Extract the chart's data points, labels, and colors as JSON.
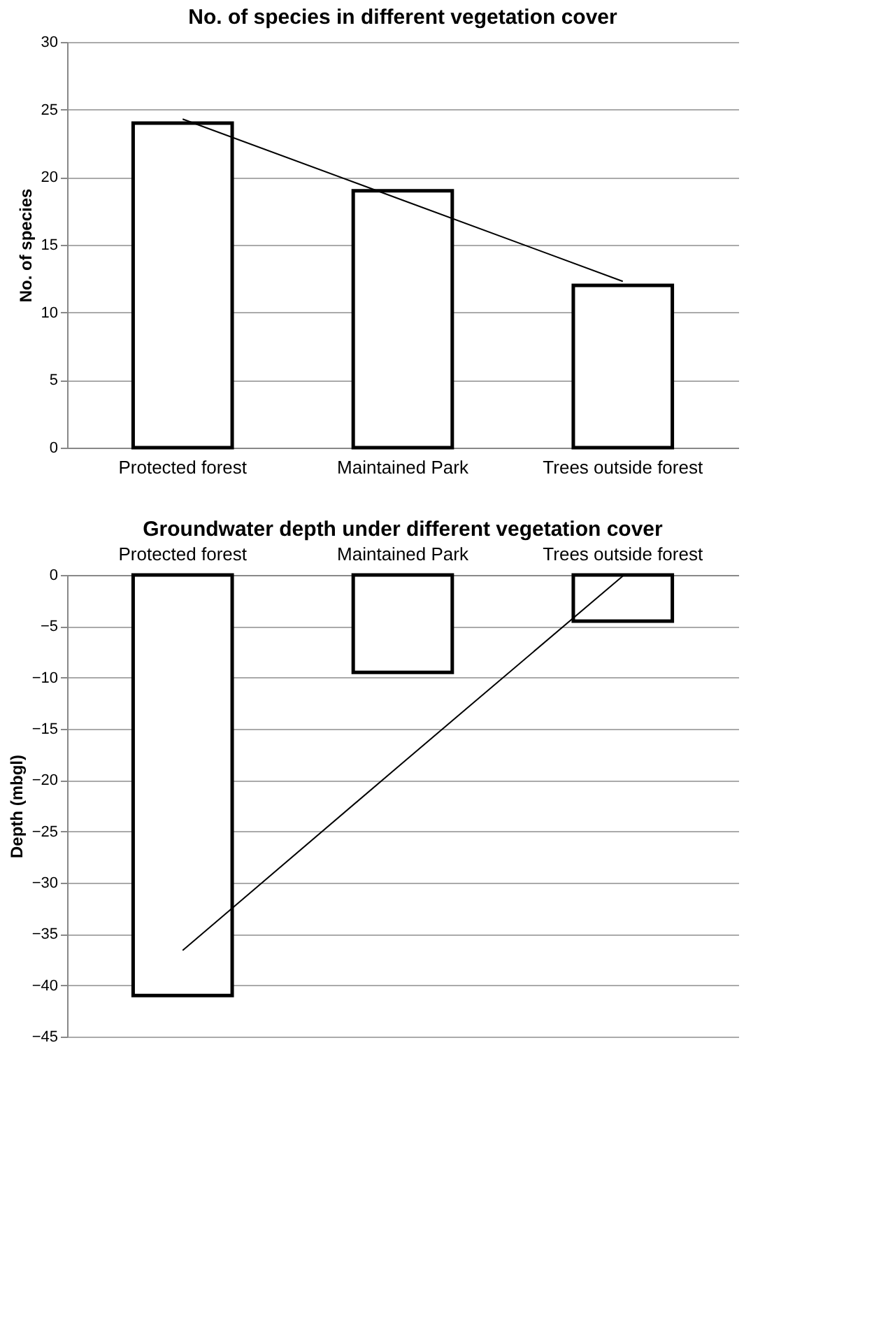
{
  "chart_data": [
    {
      "type": "bar",
      "title": "No. of species in different vegetation cover",
      "ylabel": "No. of species",
      "categories": [
        "Protected forest",
        "Maintained Park",
        "Trees outside forest"
      ],
      "series": [
        {
          "color": "#ffffff",
          "values": [
            24,
            19,
            12
          ]
        },
        {
          "type": "line",
          "color": "#000000",
          "x": [
            "Protected forest",
            "Maintained Park",
            "Trees outside forest"
          ],
          "values": [
            24.3,
            18.3,
            12.3
          ]
        }
      ],
      "ylim": [
        0,
        30
      ],
      "yticks": [
        0,
        5,
        10,
        15,
        20,
        25,
        30
      ],
      "grid": "y",
      "legend": false
    },
    {
      "type": "bar",
      "title": "Groundwater depth under different vegetation cover",
      "ylabel": "Depth (mbgl)",
      "categories": [
        "Protected forest",
        "Maintained Park",
        "Trees outside forest"
      ],
      "series": [
        {
          "color": "#ffffff",
          "values": [
            -41,
            -9.5,
            -4.5
          ]
        },
        {
          "type": "line",
          "color": "#000000",
          "x": [
            "Protected forest",
            "Maintained Park",
            "Trees outside forest"
          ],
          "values": [
            -36.6,
            -18.3,
            -0.1
          ]
        }
      ],
      "ylim": [
        -45,
        0
      ],
      "yticks": [
        -45,
        -40,
        -35,
        -30,
        -25,
        -20,
        -15,
        -10,
        -5,
        0
      ],
      "grid": "y",
      "legend": false
    }
  ]
}
